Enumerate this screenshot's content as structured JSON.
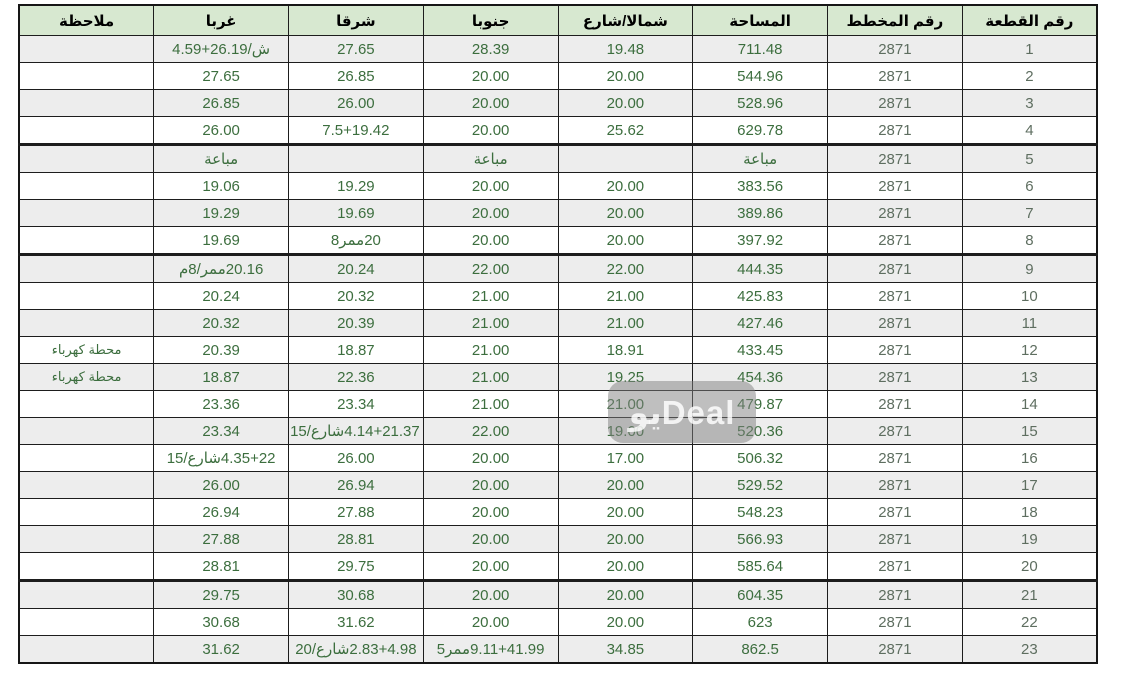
{
  "watermark": {
    "text": "يوDeal"
  },
  "table": {
    "columns": [
      {
        "key": "plot",
        "label": "رقم القطعة"
      },
      {
        "key": "plan",
        "label": "رقم المخطط"
      },
      {
        "key": "area",
        "label": "المساحة"
      },
      {
        "key": "north",
        "label": "شمالا/شارع"
      },
      {
        "key": "south",
        "label": "جنوبا"
      },
      {
        "key": "east",
        "label": "شرقا"
      },
      {
        "key": "west",
        "label": "غربا"
      },
      {
        "key": "note",
        "label": "ملاحظة"
      }
    ],
    "sold_label": "مباعة",
    "colors": {
      "header_bg": "#d7e8d0",
      "stripe_bg": "#ededed",
      "sold_bg": "#ffff00",
      "data_text": "#3c6e3e",
      "border": "#1d1d1d"
    },
    "rows": [
      {
        "plot": "1",
        "plan": "2871",
        "area": "711.48",
        "north": "19.48",
        "south": "28.39",
        "east": "27.65",
        "west": "ش/26.19+4.59",
        "note": ""
      },
      {
        "plot": "2",
        "plan": "2871",
        "area": "544.96",
        "north": "20.00",
        "south": "20.00",
        "east": "26.85",
        "west": "27.65",
        "note": ""
      },
      {
        "plot": "3",
        "plan": "2871",
        "area": "528.96",
        "north": "20.00",
        "south": "20.00",
        "east": "26.00",
        "west": "26.85",
        "note": ""
      },
      {
        "plot": "4",
        "plan": "2871",
        "area": "629.78",
        "north": "25.62",
        "south": "20.00",
        "east": "7.5+19.42",
        "west": "26.00",
        "note": "",
        "thick": true
      },
      {
        "plot": "5",
        "plan": "2871",
        "area": "مباعة",
        "north": "",
        "south": "مباعة",
        "east": "",
        "west": "مباعة",
        "note": "",
        "highlight": [
          "area",
          "south",
          "west"
        ]
      },
      {
        "plot": "6",
        "plan": "2871",
        "area": "383.56",
        "north": "20.00",
        "south": "20.00",
        "east": "19.29",
        "west": "19.06",
        "note": ""
      },
      {
        "plot": "7",
        "plan": "2871",
        "area": "389.86",
        "north": "20.00",
        "south": "20.00",
        "east": "19.69",
        "west": "19.29",
        "note": ""
      },
      {
        "plot": "8",
        "plan": "2871",
        "area": "397.92",
        "north": "20.00",
        "south": "20.00",
        "east": "20ممر8",
        "west": "19.69",
        "note": "",
        "thick": true
      },
      {
        "plot": "9",
        "plan": "2871",
        "area": "444.35",
        "north": "22.00",
        "south": "22.00",
        "east": "20.24",
        "west": "20.16ممر/8م",
        "note": ""
      },
      {
        "plot": "10",
        "plan": "2871",
        "area": "425.83",
        "north": "21.00",
        "south": "21.00",
        "east": "20.32",
        "west": "20.24",
        "note": ""
      },
      {
        "plot": "11",
        "plan": "2871",
        "area": "427.46",
        "north": "21.00",
        "south": "21.00",
        "east": "20.39",
        "west": "20.32",
        "note": ""
      },
      {
        "plot": "12",
        "plan": "2871",
        "area": "433.45",
        "north": "18.91",
        "south": "21.00",
        "east": "18.87",
        "west": "20.39",
        "note": "محطة كهرباء"
      },
      {
        "plot": "13",
        "plan": "2871",
        "area": "454.36",
        "north": "19.25",
        "south": "21.00",
        "east": "22.36",
        "west": "18.87",
        "note": "محطة كهرباء"
      },
      {
        "plot": "14",
        "plan": "2871",
        "area": "479.87",
        "north": "21.00",
        "south": "21.00",
        "east": "23.34",
        "west": "23.36",
        "note": ""
      },
      {
        "plot": "15",
        "plan": "2871",
        "area": "520.36",
        "north": "19.00",
        "south": "22.00",
        "east": "4.14+21.37شارع/15",
        "west": "23.34",
        "note": ""
      },
      {
        "plot": "16",
        "plan": "2871",
        "area": "506.32",
        "north": "17.00",
        "south": "20.00",
        "east": "26.00",
        "west": "4.35+22شارع/15",
        "note": ""
      },
      {
        "plot": "17",
        "plan": "2871",
        "area": "529.52",
        "north": "20.00",
        "south": "20.00",
        "east": "26.94",
        "west": "26.00",
        "note": ""
      },
      {
        "plot": "18",
        "plan": "2871",
        "area": "548.23",
        "north": "20.00",
        "south": "20.00",
        "east": "27.88",
        "west": "26.94",
        "note": ""
      },
      {
        "plot": "19",
        "plan": "2871",
        "area": "566.93",
        "north": "20.00",
        "south": "20.00",
        "east": "28.81",
        "west": "27.88",
        "note": ""
      },
      {
        "plot": "20",
        "plan": "2871",
        "area": "585.64",
        "north": "20.00",
        "south": "20.00",
        "east": "29.75",
        "west": "28.81",
        "note": "",
        "thick": true
      },
      {
        "plot": "21",
        "plan": "2871",
        "area": "604.35",
        "north": "20.00",
        "south": "20.00",
        "east": "30.68",
        "west": "29.75",
        "note": ""
      },
      {
        "plot": "22",
        "plan": "2871",
        "area": "623",
        "north": "20.00",
        "south": "20.00",
        "east": "31.62",
        "west": "30.68",
        "note": ""
      },
      {
        "plot": "23",
        "plan": "2871",
        "area": "862.5",
        "north": "34.85",
        "south": "9.11+41.99ممر5",
        "east": "2.83+4.98شارع/20",
        "west": "31.62",
        "note": ""
      }
    ]
  }
}
